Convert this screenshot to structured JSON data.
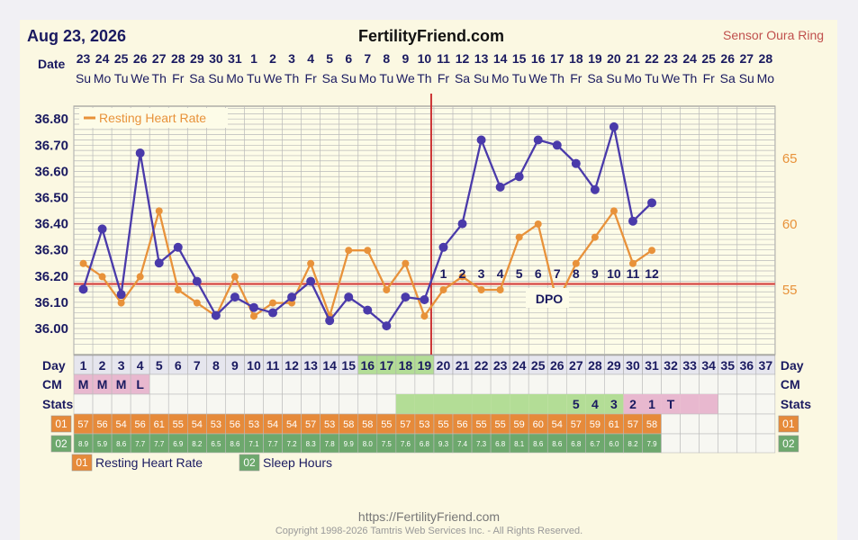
{
  "header": {
    "date": "Aug 23, 2026",
    "site": "FertilityFriend.com",
    "sensor": "Sensor Oura Ring"
  },
  "footer": {
    "url": "https://FertilityFriend.com",
    "copyright": "Copyright 1998-2026 Tamtris Web Services Inc. - All Rights Reserved."
  },
  "colors": {
    "temp_line": "#4a3aaa",
    "rhr_line": "#e8923a",
    "coverline": "#d9534f",
    "ovulation": "#cc3333",
    "grid": "#b9b9b9",
    "plot_bg": "#fdfce8",
    "green_cell": "#b3dd96",
    "pink_cell": "#e8b8cf",
    "rhr_cell": "#e68a3a",
    "sleep_cell": "#6da86d",
    "label_blue": "#1a1a60"
  },
  "row_labels": {
    "date": "Date",
    "day": "Day",
    "cm": "CM",
    "stats": "Stats"
  },
  "legend": {
    "rhr_series": "Resting Heart Rate",
    "row01_badge": "01",
    "row01_label": "Resting Heart Rate",
    "row02_badge": "02",
    "row02_label": "Sleep Hours"
  },
  "chart_data": {
    "type": "line",
    "x": [
      "23",
      "24",
      "25",
      "26",
      "27",
      "28",
      "29",
      "30",
      "31",
      "1",
      "2",
      "3",
      "4",
      "5",
      "6",
      "7",
      "8",
      "9",
      "10",
      "11",
      "12",
      "13",
      "14",
      "15",
      "16",
      "17",
      "18",
      "19",
      "20",
      "21",
      "22",
      "23",
      "24",
      "25",
      "26",
      "27",
      "28"
    ],
    "weekdays": [
      "Su",
      "Mo",
      "Tu",
      "We",
      "Th",
      "Fr",
      "Sa",
      "Su",
      "Mo",
      "Tu",
      "We",
      "Th",
      "Fr",
      "Sa",
      "Su",
      "Mo",
      "Tu",
      "We",
      "Th",
      "Fr",
      "Sa",
      "Su",
      "Mo",
      "Tu",
      "We",
      "Th",
      "Fr",
      "Sa",
      "Su",
      "Mo",
      "Tu",
      "We",
      "Th",
      "Fr",
      "Sa",
      "Su",
      "Mo"
    ],
    "cycle_days": [
      1,
      2,
      3,
      4,
      5,
      6,
      7,
      8,
      9,
      10,
      11,
      12,
      13,
      14,
      15,
      16,
      17,
      18,
      19,
      20,
      21,
      22,
      23,
      24,
      25,
      26,
      27,
      28,
      29,
      30,
      31,
      32,
      33,
      34,
      35,
      36,
      37
    ],
    "series": [
      {
        "name": "Temperature",
        "axis": "left",
        "values": [
          36.15,
          36.38,
          36.13,
          36.67,
          36.25,
          36.31,
          36.18,
          36.05,
          36.12,
          36.08,
          36.06,
          36.12,
          36.18,
          36.03,
          36.12,
          36.07,
          36.01,
          36.12,
          36.11,
          36.31,
          36.4,
          36.72,
          36.54,
          36.58,
          36.72,
          36.7,
          36.63,
          36.53,
          36.77,
          36.41,
          36.48,
          null,
          null,
          null,
          null,
          null,
          null
        ]
      },
      {
        "name": "Resting Heart Rate",
        "axis": "right",
        "values": [
          57,
          56,
          54,
          56,
          61,
          55,
          54,
          53,
          56,
          53,
          54,
          54,
          57,
          53,
          58,
          58,
          55,
          57,
          53,
          55,
          56,
          55,
          55,
          59,
          60,
          54,
          57,
          59,
          61,
          57,
          58,
          null,
          null,
          null,
          null,
          null,
          null
        ]
      }
    ],
    "sleep_hours": [
      8.9,
      5.9,
      8.6,
      7.7,
      7.7,
      6.9,
      8.2,
      6.5,
      8.6,
      7.1,
      7.7,
      7.2,
      8.3,
      7.8,
      9.9,
      8.0,
      7.5,
      7.6,
      6.8,
      9.3,
      7.4,
      7.3,
      6.8,
      8.1,
      8.6,
      8.6,
      6.8,
      6.7,
      6.0,
      8.2,
      7.9,
      null,
      null,
      null,
      null,
      null,
      null
    ],
    "cm": [
      "M",
      "M",
      "M",
      "L"
    ],
    "stats": [
      "",
      "",
      "",
      "",
      "",
      "",
      "",
      "",
      "",
      "",
      "",
      "",
      "",
      "",
      "",
      "",
      "",
      "",
      "",
      "",
      "",
      "",
      "",
      "",
      "",
      "",
      "5",
      "4",
      "3",
      "2",
      "1",
      "T",
      "",
      "",
      "",
      "",
      ""
    ],
    "stats_green_days": [
      18,
      19,
      20,
      21,
      22,
      23,
      24,
      25,
      26,
      27,
      28,
      29
    ],
    "stats_pink_days": [
      30,
      31,
      32,
      33,
      34
    ],
    "green_day_cells": [
      16,
      17,
      18,
      19
    ],
    "dpo_numbers": [
      1,
      2,
      3,
      4,
      5,
      6,
      7,
      8,
      9,
      10,
      11,
      12
    ],
    "dpo_label": "DPO",
    "coverline": 36.17,
    "ovulation_day": 19,
    "yticks": [
      "36.00",
      "36.10",
      "36.20",
      "36.30",
      "36.40",
      "36.50",
      "36.60",
      "36.70",
      "36.80"
    ],
    "ylim": [
      35.94,
      36.86
    ],
    "y2ticks": [
      "55",
      "60",
      "65"
    ],
    "y2lim": [
      50.4,
      70.7
    ]
  }
}
